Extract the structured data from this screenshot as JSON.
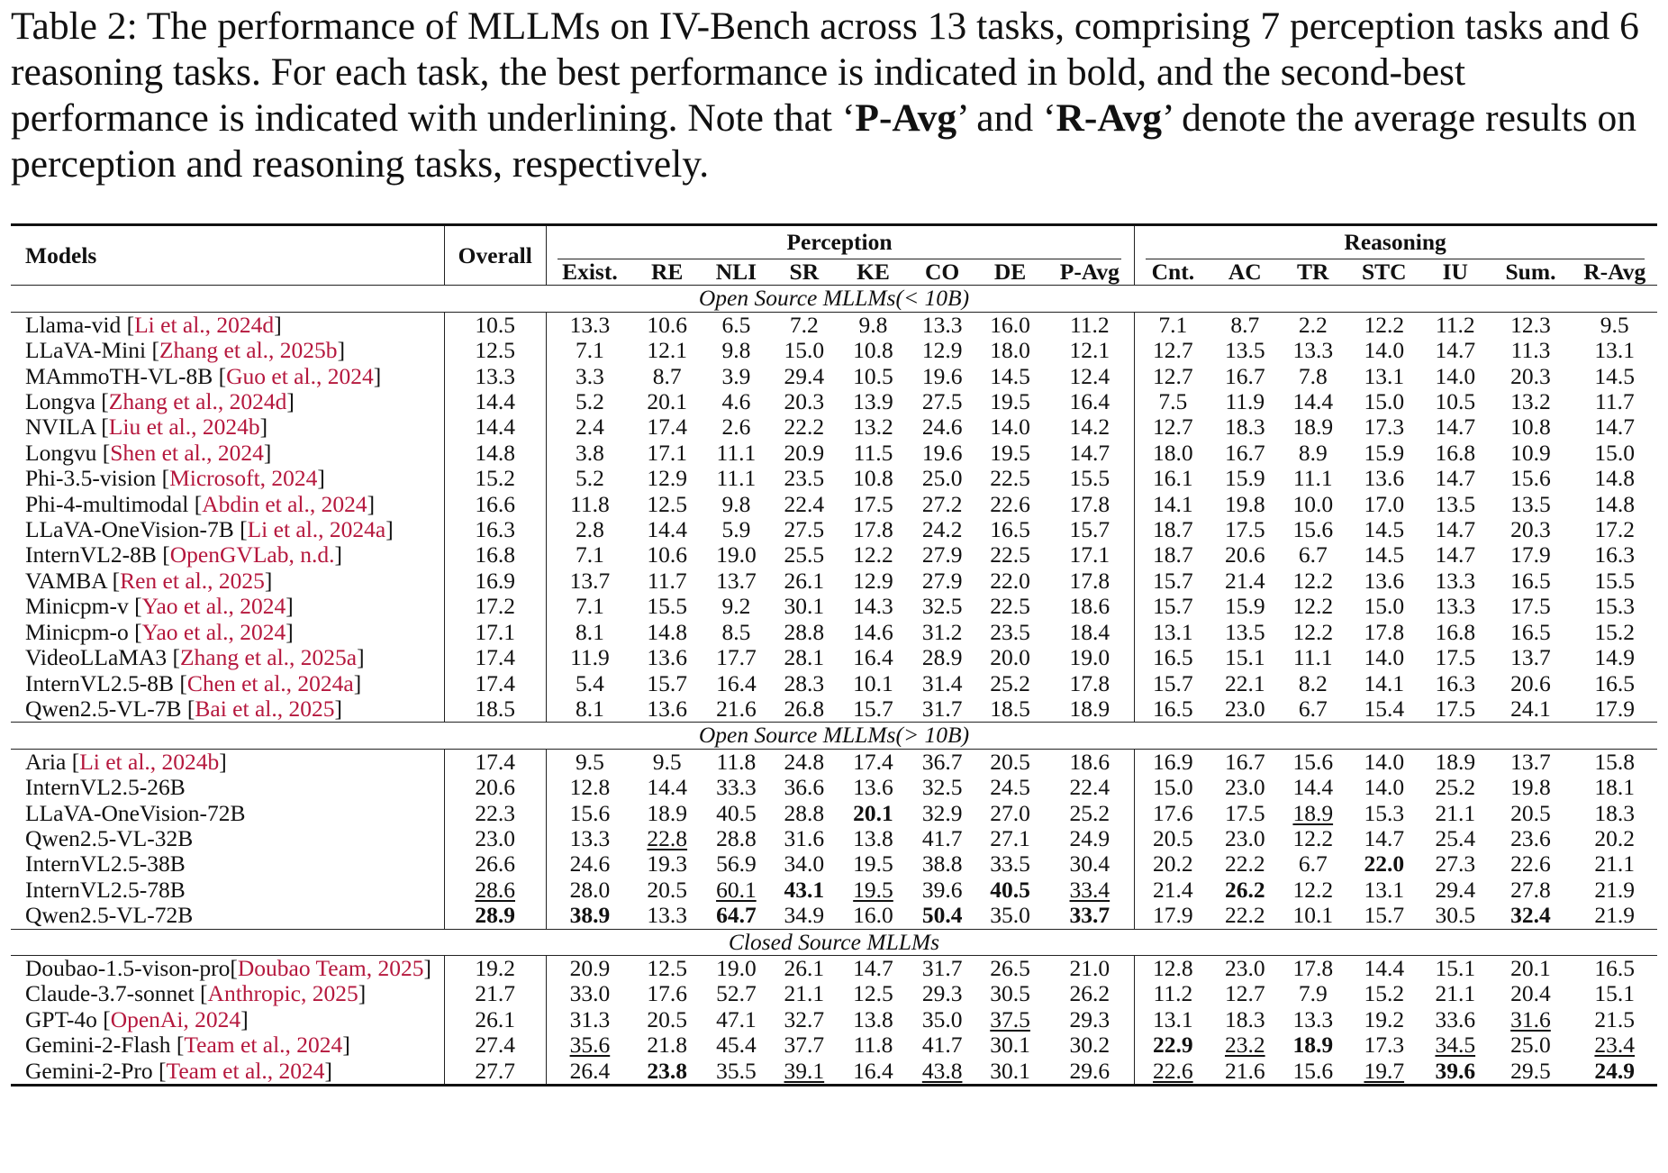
{
  "caption": {
    "part1": "Table 2: The performance of MLLMs on IV-Bench across 13 tasks, comprising 7 perception tasks and 6 reasoning tasks. For each task, the best performance is indicated in bold, and the second-best performance is indicated with underlining. Note that ‘",
    "pavg": "P-Avg",
    "part2": "’ and ‘",
    "ravg": "R-Avg",
    "part3": "’ denote the average results on perception and reasoning tasks, respectively."
  },
  "header": {
    "models": "Models",
    "overall": "Overall",
    "perception": "Perception",
    "reasoning": "Reasoning",
    "columns": [
      "Exist.",
      "RE",
      "NLI",
      "SR",
      "KE",
      "CO",
      "DE",
      "P-Avg",
      "Cnt.",
      "AC",
      "TR",
      "STC",
      "IU",
      "Sum.",
      "R-Avg"
    ]
  },
  "sections": [
    {
      "title": "Open Source MLLMs(< 10B)",
      "rows": [
        {
          "name": "Llama-vid ",
          "ref": "Li et al., 2024d",
          "v": [
            "10.5",
            "13.3",
            "10.6",
            "6.5",
            "7.2",
            "9.8",
            "13.3",
            "16.0",
            "11.2",
            "7.1",
            "8.7",
            "2.2",
            "12.2",
            "11.2",
            "12.3",
            "9.5"
          ]
        },
        {
          "name": "LLaVA-Mini ",
          "ref": "Zhang et al., 2025b",
          "v": [
            "12.5",
            "7.1",
            "12.1",
            "9.8",
            "15.0",
            "10.8",
            "12.9",
            "18.0",
            "12.1",
            "12.7",
            "13.5",
            "13.3",
            "14.0",
            "14.7",
            "11.3",
            "13.1"
          ]
        },
        {
          "name": "MAmmoTH-VL-8B ",
          "ref": "Guo et al., 2024",
          "v": [
            "13.3",
            "3.3",
            "8.7",
            "3.9",
            "29.4",
            "10.5",
            "19.6",
            "14.5",
            "12.4",
            "12.7",
            "16.7",
            "7.8",
            "13.1",
            "14.0",
            "20.3",
            "14.5"
          ]
        },
        {
          "name": "Longva ",
          "ref": "Zhang et al., 2024d",
          "v": [
            "14.4",
            "5.2",
            "20.1",
            "4.6",
            "20.3",
            "13.9",
            "27.5",
            "19.5",
            "16.4",
            "7.5",
            "11.9",
            "14.4",
            "15.0",
            "10.5",
            "13.2",
            "11.7"
          ]
        },
        {
          "name": "NVILA ",
          "ref": "Liu et al., 2024b",
          "v": [
            "14.4",
            "2.4",
            "17.4",
            "2.6",
            "22.2",
            "13.2",
            "24.6",
            "14.0",
            "14.2",
            "12.7",
            "18.3",
            "18.9",
            "17.3",
            "14.7",
            "10.8",
            "14.7"
          ]
        },
        {
          "name": "Longvu ",
          "ref": "Shen et al., 2024",
          "v": [
            "14.8",
            "3.8",
            "17.1",
            "11.1",
            "20.9",
            "11.5",
            "19.6",
            "19.5",
            "14.7",
            "18.0",
            "16.7",
            "8.9",
            "15.9",
            "16.8",
            "10.9",
            "15.0"
          ]
        },
        {
          "name": "Phi-3.5-vision ",
          "ref": "Microsoft, 2024",
          "v": [
            "15.2",
            "5.2",
            "12.9",
            "11.1",
            "23.5",
            "10.8",
            "25.0",
            "22.5",
            "15.5",
            "16.1",
            "15.9",
            "11.1",
            "13.6",
            "14.7",
            "15.6",
            "14.8"
          ]
        },
        {
          "name": "Phi-4-multimodal ",
          "ref": "Abdin et al., 2024",
          "v": [
            "16.6",
            "11.8",
            "12.5",
            "9.8",
            "22.4",
            "17.5",
            "27.2",
            "22.6",
            "17.8",
            "14.1",
            "19.8",
            "10.0",
            "17.0",
            "13.5",
            "13.5",
            "14.8"
          ]
        },
        {
          "name": "LLaVA-OneVision-7B ",
          "ref": "Li et al., 2024a",
          "v": [
            "16.3",
            "2.8",
            "14.4",
            "5.9",
            "27.5",
            "17.8",
            "24.2",
            "16.5",
            "15.7",
            "18.7",
            "17.5",
            "15.6",
            "14.5",
            "14.7",
            "20.3",
            "17.2"
          ]
        },
        {
          "name": "InternVL2-8B ",
          "ref": "OpenGVLab, n.d.",
          "v": [
            "16.8",
            "7.1",
            "10.6",
            "19.0",
            "25.5",
            "12.2",
            "27.9",
            "22.5",
            "17.1",
            "18.7",
            "20.6",
            "6.7",
            "14.5",
            "14.7",
            "17.9",
            "16.3"
          ]
        },
        {
          "name": "VAMBA ",
          "ref": "Ren et al., 2025",
          "v": [
            "16.9",
            "13.7",
            "11.7",
            "13.7",
            "26.1",
            "12.9",
            "27.9",
            "22.0",
            "17.8",
            "15.7",
            "21.4",
            "12.2",
            "13.6",
            "13.3",
            "16.5",
            "15.5"
          ]
        },
        {
          "name": "Minicpm-v ",
          "ref": "Yao et al., 2024",
          "v": [
            "17.2",
            "7.1",
            "15.5",
            "9.2",
            "30.1",
            "14.3",
            "32.5",
            "22.5",
            "18.6",
            "15.7",
            "15.9",
            "12.2",
            "15.0",
            "13.3",
            "17.5",
            "15.3"
          ]
        },
        {
          "name": "Minicpm-o ",
          "ref": "Yao et al., 2024",
          "v": [
            "17.1",
            "8.1",
            "14.8",
            "8.5",
            "28.8",
            "14.6",
            "31.2",
            "23.5",
            "18.4",
            "13.1",
            "13.5",
            "12.2",
            "17.8",
            "16.8",
            "16.5",
            "15.2"
          ]
        },
        {
          "name": "VideoLLaMA3 ",
          "ref": "Zhang et al., 2025a",
          "v": [
            "17.4",
            "11.9",
            "13.6",
            "17.7",
            "28.1",
            "16.4",
            "28.9",
            "20.0",
            "19.0",
            "16.5",
            "15.1",
            "11.1",
            "14.0",
            "17.5",
            "13.7",
            "14.9"
          ]
        },
        {
          "name": "InternVL2.5-8B ",
          "ref": "Chen et al., 2024a",
          "v": [
            "17.4",
            "5.4",
            "15.7",
            "16.4",
            "28.3",
            "10.1",
            "31.4",
            "25.2",
            "17.8",
            "15.7",
            "22.1",
            "8.2",
            "14.1",
            "16.3",
            "20.6",
            "16.5"
          ]
        },
        {
          "name": "Qwen2.5-VL-7B ",
          "ref": "Bai et al., 2025",
          "v": [
            "18.5",
            "8.1",
            "13.6",
            "21.6",
            "26.8",
            "15.7",
            "31.7",
            "18.5",
            "18.9",
            "16.5",
            "23.0",
            "6.7",
            "15.4",
            "17.5",
            "24.1",
            "17.9"
          ]
        }
      ]
    },
    {
      "title": "Open Source MLLMs(> 10B)",
      "rows": [
        {
          "name": "Aria ",
          "ref": "Li et al., 2024b",
          "v": [
            "17.4",
            "9.5",
            "9.5",
            "11.8",
            "24.8",
            "17.4",
            "36.7",
            "20.5",
            "18.6",
            "16.9",
            "16.7",
            "15.6",
            "14.0",
            "18.9",
            "13.7",
            "15.8"
          ]
        },
        {
          "name": "InternVL2.5-26B",
          "ref": "",
          "v": [
            "20.6",
            "12.8",
            "14.4",
            "33.3",
            "36.6",
            "13.6",
            "32.5",
            "24.5",
            "22.4",
            "15.0",
            "23.0",
            "14.4",
            "14.0",
            "25.2",
            "19.8",
            "18.1"
          ]
        },
        {
          "name": "LLaVA-OneVision-72B",
          "ref": "",
          "v": [
            "22.3",
            "15.6",
            "18.9",
            "40.5",
            "28.8",
            "20.1",
            "32.9",
            "27.0",
            "25.2",
            "17.6",
            "17.5",
            "18.9",
            "15.3",
            "21.1",
            "20.5",
            "18.3"
          ],
          "bold": [
            5
          ],
          "ul": [
            11
          ]
        },
        {
          "name": "Qwen2.5-VL-32B",
          "ref": "",
          "v": [
            "23.0",
            "13.3",
            "22.8",
            "28.8",
            "31.6",
            "13.8",
            "41.7",
            "27.1",
            "24.9",
            "20.5",
            "23.0",
            "12.2",
            "14.7",
            "25.4",
            "23.6",
            "20.2"
          ],
          "ul": [
            2
          ]
        },
        {
          "name": "InternVL2.5-38B",
          "ref": "",
          "v": [
            "26.6",
            "24.6",
            "19.3",
            "56.9",
            "34.0",
            "19.5",
            "38.8",
            "33.5",
            "30.4",
            "20.2",
            "22.2",
            "6.7",
            "22.0",
            "27.3",
            "22.6",
            "21.1"
          ],
          "bold": [
            12
          ]
        },
        {
          "name": "InternVL2.5-78B",
          "ref": "",
          "v": [
            "28.6",
            "28.0",
            "20.5",
            "60.1",
            "43.1",
            "19.5",
            "39.6",
            "40.5",
            "33.4",
            "21.4",
            "26.2",
            "12.2",
            "13.1",
            "29.4",
            "27.8",
            "21.9"
          ],
          "bold": [
            4,
            7,
            10
          ],
          "ul": [
            0,
            3,
            5,
            8
          ]
        },
        {
          "name": "Qwen2.5-VL-72B",
          "ref": "",
          "v": [
            "28.9",
            "38.9",
            "13.3",
            "64.7",
            "34.9",
            "16.0",
            "50.4",
            "35.0",
            "33.7",
            "17.9",
            "22.2",
            "10.1",
            "15.7",
            "30.5",
            "32.4",
            "21.9"
          ],
          "bold": [
            0,
            1,
            3,
            6,
            8,
            14
          ]
        }
      ]
    },
    {
      "title": "Closed Source MLLMs",
      "rows": [
        {
          "name": "Doubao-1.5-vison-pro",
          "ref": "Doubao Team, 2025",
          "noSpace": true,
          "v": [
            "19.2",
            "20.9",
            "12.5",
            "19.0",
            "26.1",
            "14.7",
            "31.7",
            "26.5",
            "21.0",
            "12.8",
            "23.0",
            "17.8",
            "14.4",
            "15.1",
            "20.1",
            "16.5"
          ]
        },
        {
          "name": "Claude-3.7-sonnet ",
          "ref": "Anthropic, 2025",
          "v": [
            "21.7",
            "33.0",
            "17.6",
            "52.7",
            "21.1",
            "12.5",
            "29.3",
            "30.5",
            "26.2",
            "11.2",
            "12.7",
            "7.9",
            "15.2",
            "21.1",
            "20.4",
            "15.1"
          ]
        },
        {
          "name": "GPT-4o ",
          "ref": "OpenAi, 2024",
          "v": [
            "26.1",
            "31.3",
            "20.5",
            "47.1",
            "32.7",
            "13.8",
            "35.0",
            "37.5",
            "29.3",
            "13.1",
            "18.3",
            "13.3",
            "19.2",
            "33.6",
            "31.6",
            "21.5"
          ],
          "ul": [
            7,
            14
          ]
        },
        {
          "name": "Gemini-2-Flash ",
          "ref": "Team et al., 2024",
          "v": [
            "27.4",
            "35.6",
            "21.8",
            "45.4",
            "37.7",
            "11.8",
            "41.7",
            "30.1",
            "30.2",
            "22.9",
            "23.2",
            "18.9",
            "17.3",
            "34.5",
            "25.0",
            "23.4"
          ],
          "bold": [
            9,
            11
          ],
          "ul": [
            1,
            10,
            13,
            15
          ]
        },
        {
          "name": "Gemini-2-Pro ",
          "ref": "Team et al., 2024",
          "v": [
            "27.7",
            "26.4",
            "23.8",
            "35.5",
            "39.1",
            "16.4",
            "43.8",
            "30.1",
            "29.6",
            "22.6",
            "21.6",
            "15.6",
            "19.7",
            "39.6",
            "29.5",
            "24.9"
          ],
          "bold": [
            2,
            13,
            15
          ],
          "ul": [
            4,
            6,
            9,
            12
          ]
        }
      ]
    }
  ]
}
